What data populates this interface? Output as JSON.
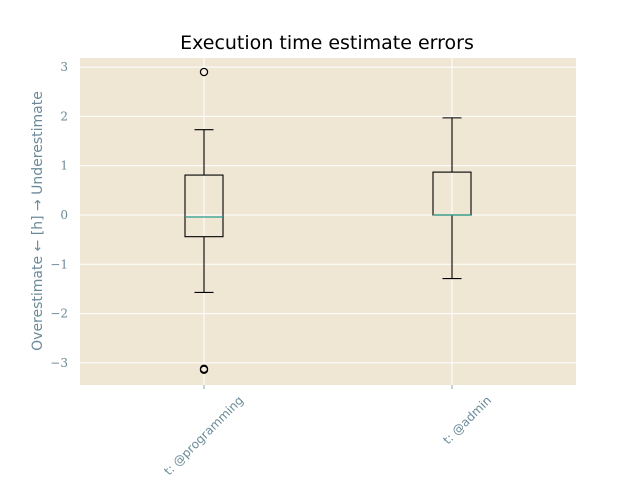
{
  "chart_data": {
    "type": "box",
    "title": "Execution time estimate errors",
    "xlabel": "",
    "ylabel": "Overestimate ← [h] → Underestimate",
    "ylim": [
      -3.45,
      3.2
    ],
    "yticks": [
      -3,
      -2,
      -1,
      0,
      1,
      2,
      3
    ],
    "ytick_labels": [
      "−3",
      "−2",
      "−1",
      "0",
      "1",
      "2",
      "3"
    ],
    "grid": true,
    "categories": [
      "t: @programming",
      "t: @admin"
    ],
    "boxes": [
      {
        "name": "t: @programming",
        "whisker_low": -1.57,
        "q1": -0.44,
        "median": -0.04,
        "q3": 0.81,
        "whisker_high": 1.73,
        "outliers": [
          2.9,
          -3.12,
          -3.14
        ]
      },
      {
        "name": "t: @admin",
        "whisker_low": -1.29,
        "q1": 0.0,
        "median": 0.0,
        "q3": 0.87,
        "whisker_high": 1.97,
        "outliers": []
      }
    ],
    "colors": {
      "background": "#efe7d4",
      "grid": "#ffffff",
      "box": "#000000",
      "median": "#2a9d8f",
      "text": "#6b8a99"
    }
  }
}
